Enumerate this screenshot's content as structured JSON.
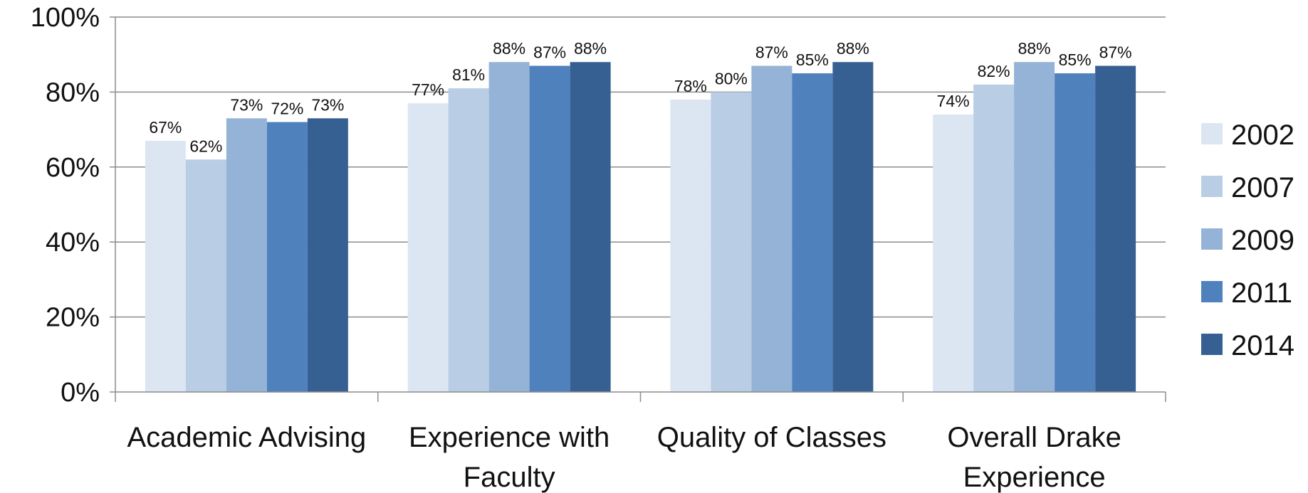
{
  "chart_data": {
    "type": "bar",
    "categories": [
      [
        "Academic Advising"
      ],
      [
        "Experience with",
        "Faculty"
      ],
      [
        "Quality of Classes"
      ],
      [
        "Overall Drake",
        "Experience"
      ]
    ],
    "series": [
      {
        "name": "2002",
        "color": "#dce6f2",
        "values": [
          67,
          77,
          78,
          74
        ],
        "labels": [
          "67%",
          "77%",
          "78%",
          "74%"
        ]
      },
      {
        "name": "2007",
        "color": "#b9cde5",
        "values": [
          62,
          81,
          80,
          82
        ],
        "labels": [
          "62%",
          "81%",
          "80%",
          "82%"
        ]
      },
      {
        "name": "2009",
        "color": "#95b3d7",
        "values": [
          73,
          88,
          87,
          88
        ],
        "labels": [
          "73%",
          "88%",
          "87%",
          "88%"
        ]
      },
      {
        "name": "2011",
        "color": "#4f81bd",
        "values": [
          72,
          87,
          85,
          85
        ],
        "labels": [
          "72%",
          "87%",
          "85%",
          "85%"
        ]
      },
      {
        "name": "2014",
        "color": "#376092",
        "values": [
          73,
          88,
          88,
          87
        ],
        "labels": [
          "73%",
          "88%",
          "88%",
          "87%"
        ]
      }
    ],
    "yticks": [
      "0%",
      "20%",
      "40%",
      "60%",
      "80%",
      "100%"
    ],
    "ylim": [
      0,
      100
    ],
    "grid": true,
    "legend_position": "right",
    "xlabel": "",
    "ylabel": ""
  }
}
